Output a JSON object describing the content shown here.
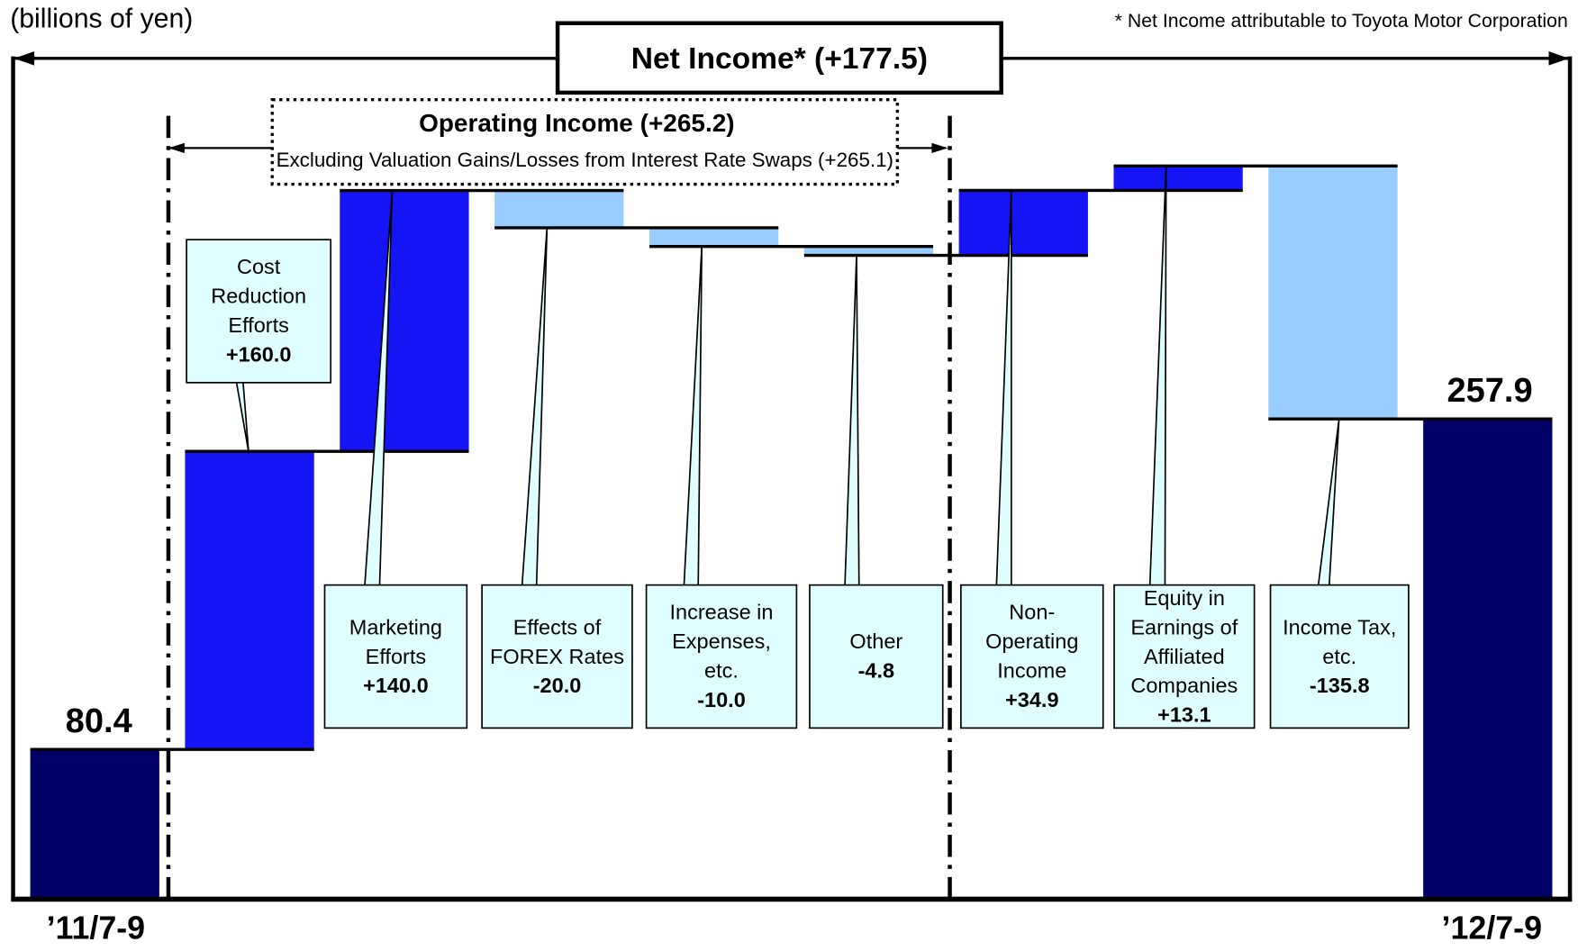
{
  "chart_data": {
    "type": "waterfall",
    "unit_label": "(billions of yen)",
    "footnote": "* Net Income attributable to Toyota Motor Corporation",
    "net_income_label": "Net Income* (+177.5)",
    "operating_income_label": "Operating Income (+265.2)",
    "operating_income_sub": "Excluding Valuation Gains/Losses from Interest Rate Swaps (+265.1)",
    "categories": [
      "’11/7-9",
      "Cost Reduction Efforts",
      "Marketing Efforts",
      "Effects of FOREX Rates",
      "Increase in Expenses, etc.",
      "Other",
      "Non-Operating Income",
      "Equity in Earnings of Affiliated Companies",
      "Income Tax, etc.",
      "’12/7-9"
    ],
    "values": [
      80.4,
      160.0,
      140.0,
      -20.0,
      -10.0,
      -4.8,
      34.9,
      13.1,
      -135.8,
      257.9
    ],
    "value_labels": [
      "80.4",
      "+160.0",
      "+140.0",
      "-20.0",
      "-10.0",
      "-4.8",
      "+34.9",
      "+13.1",
      "-135.8",
      "257.9"
    ],
    "colors": {
      "total": "#000066",
      "increase": "#1414f5",
      "decrease": "#99ccff"
    },
    "ylim": [
      0,
      480
    ]
  }
}
